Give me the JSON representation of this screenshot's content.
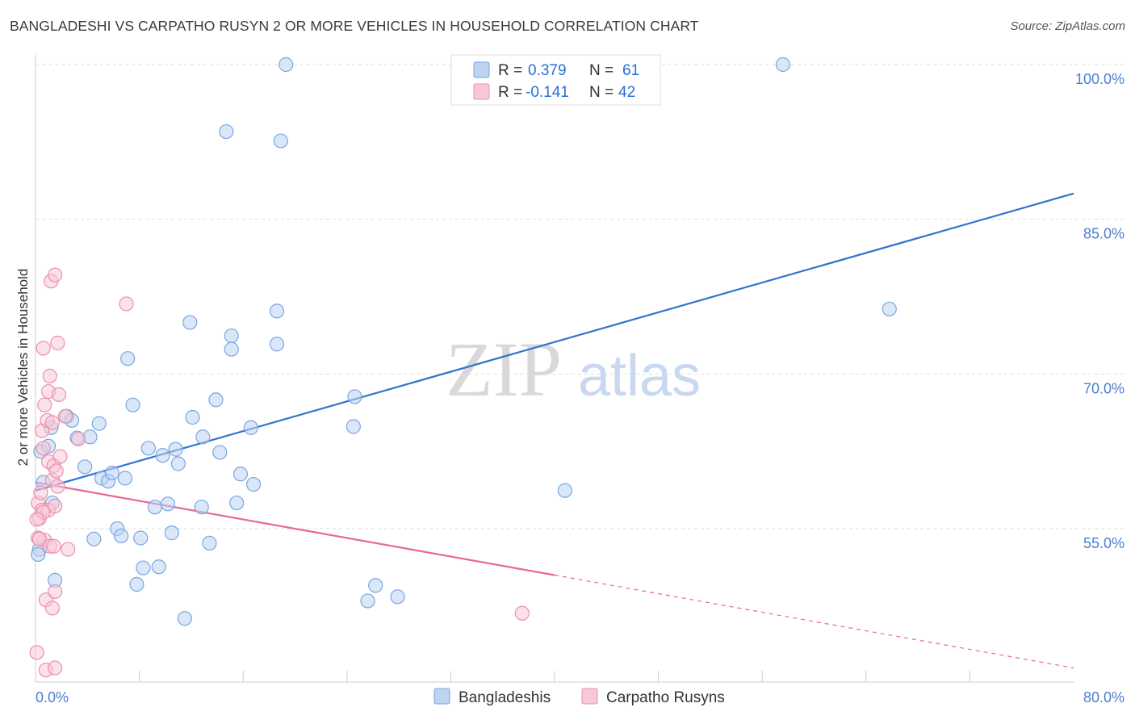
{
  "title": "BANGLADESHI VS CARPATHO RUSYN 2 OR MORE VEHICLES IN HOUSEHOLD CORRELATION CHART",
  "source": "Source: ZipAtlas.com",
  "watermark": {
    "zip": "ZIP",
    "atlas": "atlas"
  },
  "colors": {
    "blue_fill": "#bcd3f2",
    "blue_stroke": "#7aa6e0",
    "blue_line": "#2f74d0",
    "pink_fill": "#f8c8d6",
    "pink_stroke": "#ec8fae",
    "pink_line": "#e8679a",
    "grid": "#dddddd",
    "tick_text": "#4a7fd0"
  },
  "legend": {
    "rows": [
      {
        "r_label": "R =",
        "r_value": "0.379",
        "n_label": "N =",
        "n_value": "61"
      },
      {
        "r_label": "R =",
        "r_value": "-0.141",
        "n_label": "N =",
        "n_value": "42"
      }
    ]
  },
  "chart_data": {
    "type": "scatter",
    "title": "BANGLADESHI VS CARPATHO RUSYN 2 OR MORE VEHICLES IN HOUSEHOLD CORRELATION CHART",
    "xlabel": "",
    "ylabel": "2 or more Vehicles in Household",
    "xlim": [
      0,
      80
    ],
    "ylim": [
      40,
      101
    ],
    "x_tick_labels": [
      "0.0%",
      "80.0%"
    ],
    "y_ticks": [
      55,
      70,
      85,
      100
    ],
    "y_tick_labels": [
      "55.0%",
      "70.0%",
      "85.0%",
      "100.0%"
    ],
    "series": [
      {
        "name": "Bangladeshis",
        "color": "blue",
        "trend": {
          "x0": 0,
          "y0": 58.7,
          "x1": 80,
          "y1": 87.5,
          "solid_until": 80
        },
        "points": [
          [
            0.3,
            53.0
          ],
          [
            0.4,
            62.5
          ],
          [
            0.6,
            59.5
          ],
          [
            1.0,
            63.0
          ],
          [
            1.2,
            64.8
          ],
          [
            1.3,
            57.5
          ],
          [
            1.5,
            50.0
          ],
          [
            2.4,
            65.9
          ],
          [
            2.8,
            65.5
          ],
          [
            3.2,
            63.8
          ],
          [
            3.8,
            61.0
          ],
          [
            4.2,
            63.9
          ],
          [
            4.5,
            54.0
          ],
          [
            4.9,
            65.2
          ],
          [
            5.1,
            59.9
          ],
          [
            5.6,
            59.6
          ],
          [
            5.9,
            60.4
          ],
          [
            6.3,
            55.0
          ],
          [
            6.6,
            54.3
          ],
          [
            6.9,
            59.9
          ],
          [
            7.1,
            71.5
          ],
          [
            7.5,
            67.0
          ],
          [
            7.8,
            49.6
          ],
          [
            8.1,
            54.1
          ],
          [
            8.3,
            51.2
          ],
          [
            8.7,
            62.8
          ],
          [
            9.2,
            57.1
          ],
          [
            9.5,
            51.3
          ],
          [
            9.8,
            62.1
          ],
          [
            10.2,
            57.4
          ],
          [
            10.5,
            54.6
          ],
          [
            10.8,
            62.7
          ],
          [
            11.0,
            61.3
          ],
          [
            11.5,
            46.3
          ],
          [
            11.9,
            75.0
          ],
          [
            12.1,
            65.8
          ],
          [
            12.8,
            57.1
          ],
          [
            12.9,
            63.9
          ],
          [
            13.4,
            53.6
          ],
          [
            13.9,
            67.5
          ],
          [
            14.2,
            62.4
          ],
          [
            14.7,
            93.5
          ],
          [
            15.1,
            73.7
          ],
          [
            15.1,
            72.4
          ],
          [
            15.5,
            57.5
          ],
          [
            15.8,
            60.3
          ],
          [
            16.6,
            64.8
          ],
          [
            16.8,
            59.3
          ],
          [
            18.6,
            76.1
          ],
          [
            18.6,
            72.9
          ],
          [
            18.9,
            92.6
          ],
          [
            19.3,
            100.0
          ],
          [
            24.5,
            64.9
          ],
          [
            24.6,
            67.8
          ],
          [
            25.6,
            48.0
          ],
          [
            26.2,
            49.5
          ],
          [
            27.9,
            48.4
          ],
          [
            40.8,
            58.7
          ],
          [
            57.6,
            100.0
          ],
          [
            65.8,
            76.3
          ],
          [
            0.2,
            52.5
          ]
        ]
      },
      {
        "name": "Carpatho Rusyns",
        "color": "pink",
        "trend": {
          "x0": 0,
          "y0": 59.5,
          "x1": 80,
          "y1": 41.5,
          "solid_until": 40
        },
        "points": [
          [
            0.2,
            57.5
          ],
          [
            0.3,
            56.0
          ],
          [
            0.4,
            58.5
          ],
          [
            0.5,
            64.5
          ],
          [
            0.5,
            56.8
          ],
          [
            0.6,
            62.8
          ],
          [
            0.6,
            72.5
          ],
          [
            0.7,
            67.0
          ],
          [
            0.7,
            53.9
          ],
          [
            0.8,
            48.1
          ],
          [
            0.8,
            41.3
          ],
          [
            0.9,
            65.5
          ],
          [
            1.0,
            61.5
          ],
          [
            1.0,
            56.8
          ],
          [
            1.0,
            68.3
          ],
          [
            1.1,
            69.8
          ],
          [
            1.1,
            53.3
          ],
          [
            1.2,
            79.0
          ],
          [
            1.3,
            59.7
          ],
          [
            1.3,
            47.3
          ],
          [
            1.3,
            65.3
          ],
          [
            1.4,
            61.1
          ],
          [
            1.4,
            53.3
          ],
          [
            1.5,
            57.2
          ],
          [
            1.5,
            48.9
          ],
          [
            1.5,
            79.6
          ],
          [
            1.5,
            41.5
          ],
          [
            1.6,
            60.6
          ],
          [
            1.7,
            73.0
          ],
          [
            1.7,
            59.1
          ],
          [
            1.8,
            68.0
          ],
          [
            1.9,
            62.0
          ],
          [
            2.3,
            65.9
          ],
          [
            2.5,
            53.0
          ],
          [
            3.3,
            63.7
          ],
          [
            7.0,
            76.8
          ],
          [
            37.5,
            46.8
          ],
          [
            0.1,
            43.0
          ],
          [
            0.2,
            54.1
          ],
          [
            0.3,
            54.0
          ],
          [
            0.6,
            56.6
          ],
          [
            0.1,
            55.9
          ]
        ]
      }
    ]
  },
  "bottom_legend": [
    {
      "label": "Bangladeshis"
    },
    {
      "label": "Carpatho Rusyns"
    }
  ]
}
